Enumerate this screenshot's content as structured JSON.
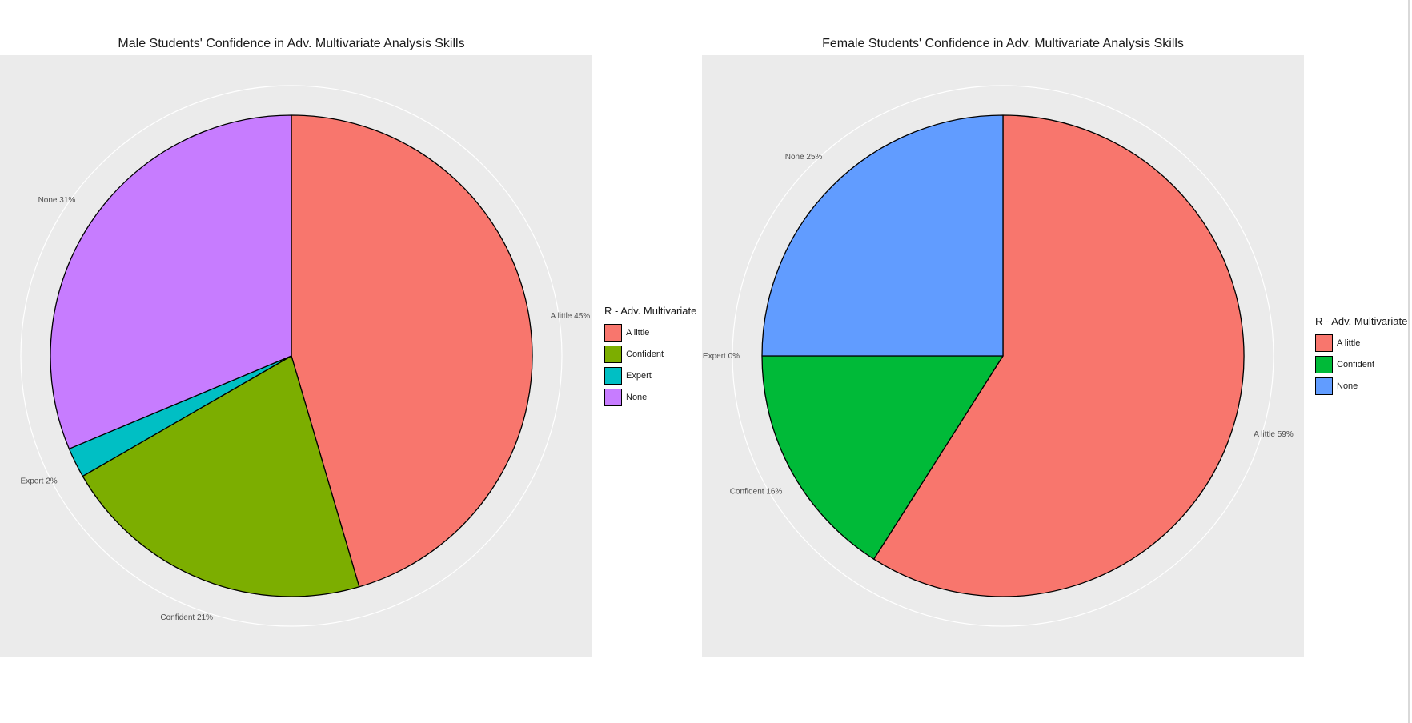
{
  "chart_data": [
    {
      "type": "pie",
      "title": "Male Students' Confidence in Adv. Multivariate Analysis Skills",
      "legend_title": "R - Adv. Multivariate",
      "legend_position": "right",
      "categories": [
        "A little",
        "Confident",
        "Expert",
        "None"
      ],
      "values": [
        45,
        21,
        2,
        31
      ],
      "labels": [
        "A little 45%",
        "Confident 21%",
        "Expert 2%",
        "None 31%"
      ],
      "colors": [
        "#F8766D",
        "#7CAE00",
        "#00BFC4",
        "#C77CFF"
      ]
    },
    {
      "type": "pie",
      "title": "Female Students' Confidence in Adv. Multivariate Analysis Skills",
      "legend_title": "R - Adv. Multivariate",
      "legend_position": "right",
      "categories": [
        "A little",
        "Confident",
        "Expert",
        "None"
      ],
      "values": [
        59,
        16,
        0,
        25
      ],
      "labels": [
        "A little 59%",
        "Confident 16%",
        "Expert 0%",
        "None 25%"
      ],
      "colors": [
        "#F8766D",
        "#00BA38",
        "#00BA38",
        "#619CFF"
      ],
      "legend_entries": [
        {
          "label": "A little",
          "color": "#F8766D"
        },
        {
          "label": "Confident",
          "color": "#00BA38"
        },
        {
          "label": "None",
          "color": "#619CFF"
        }
      ]
    }
  ]
}
